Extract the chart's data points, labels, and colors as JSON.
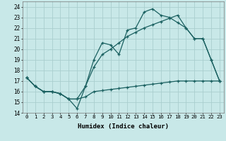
{
  "xlabel": "Humidex (Indice chaleur)",
  "bg_color": "#c8e8e8",
  "grid_color": "#aacece",
  "line_color": "#1a6060",
  "xlim": [
    -0.5,
    23.5
  ],
  "ylim": [
    14,
    24.5
  ],
  "xticks": [
    0,
    1,
    2,
    3,
    4,
    5,
    6,
    7,
    8,
    9,
    10,
    11,
    12,
    13,
    14,
    15,
    16,
    17,
    18,
    19,
    20,
    21,
    22,
    23
  ],
  "yticks": [
    14,
    15,
    16,
    17,
    18,
    19,
    20,
    21,
    22,
    23,
    24
  ],
  "line1_x": [
    0,
    1,
    2,
    3,
    4,
    5,
    6,
    7,
    8,
    9,
    10,
    11,
    12,
    13,
    14,
    15,
    16,
    17,
    18,
    19,
    20,
    21,
    22,
    23
  ],
  "line1_y": [
    17.3,
    16.5,
    16.0,
    16.0,
    15.8,
    15.3,
    14.4,
    16.5,
    19.0,
    20.6,
    20.4,
    19.5,
    21.8,
    22.0,
    23.5,
    23.8,
    23.2,
    23.0,
    22.5,
    22.0,
    21.0,
    21.0,
    19.0,
    17.0
  ],
  "line2_x": [
    0,
    1,
    2,
    3,
    4,
    5,
    6,
    7,
    8,
    9,
    10,
    11,
    12,
    13,
    14,
    15,
    16,
    17,
    18,
    19,
    20,
    21,
    22,
    23
  ],
  "line2_y": [
    17.3,
    16.5,
    16.0,
    16.0,
    15.8,
    15.3,
    15.3,
    16.5,
    18.3,
    19.5,
    20.0,
    20.6,
    21.2,
    21.6,
    22.0,
    22.3,
    22.6,
    22.9,
    23.2,
    22.0,
    21.0,
    21.0,
    19.0,
    17.0
  ],
  "line3_x": [
    0,
    1,
    2,
    3,
    4,
    5,
    6,
    7,
    8,
    9,
    10,
    11,
    12,
    13,
    14,
    15,
    16,
    17,
    18,
    19,
    20,
    21,
    22,
    23
  ],
  "line3_y": [
    17.3,
    16.5,
    16.0,
    16.0,
    15.8,
    15.3,
    15.3,
    15.5,
    16.0,
    16.1,
    16.2,
    16.3,
    16.4,
    16.5,
    16.6,
    16.7,
    16.8,
    16.9,
    17.0,
    17.0,
    17.0,
    17.0,
    17.0,
    17.0
  ]
}
